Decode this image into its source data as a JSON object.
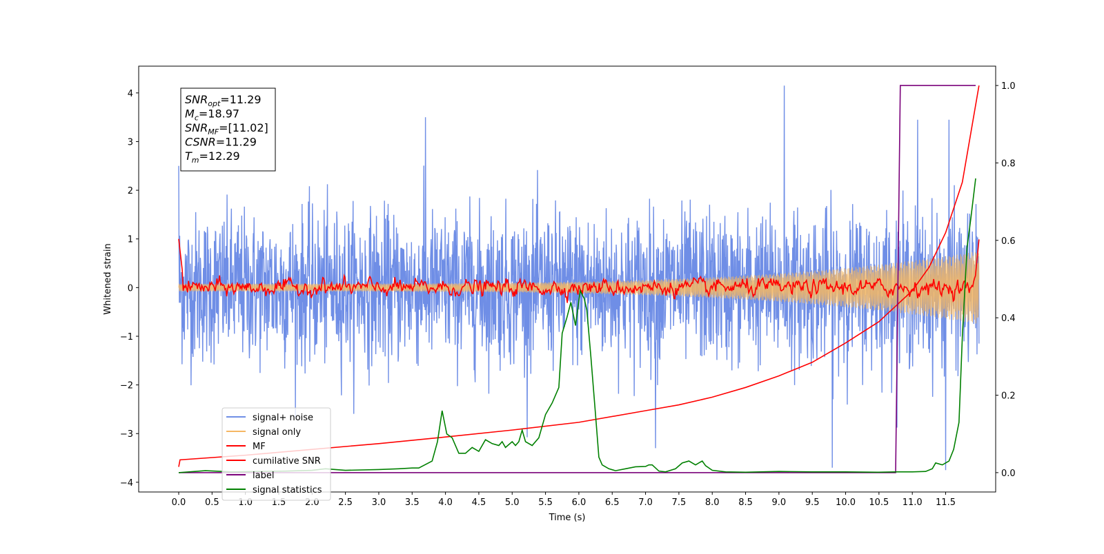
{
  "chart_data": {
    "type": "line",
    "xlabel": "Time (s)",
    "ylabel_left": "Whitened strain",
    "ylabel_right": "",
    "xlim": [
      -0.6,
      12.25
    ],
    "ylim_left": [
      -4.2,
      4.55
    ],
    "ylim_right": [
      -0.05,
      1.05
    ],
    "x_ticks": [
      "0.0",
      "0.5",
      "1.0",
      "1.5",
      "2.0",
      "2.5",
      "3.0",
      "3.5",
      "4.0",
      "4.5",
      "5.0",
      "5.5",
      "6.0",
      "6.5",
      "7.0",
      "7.5",
      "8.0",
      "8.5",
      "9.0",
      "9.5",
      "10.0",
      "10.5",
      "11.0",
      "11.5"
    ],
    "y_ticks_left": [
      "4",
      "3",
      "2",
      "1",
      "0",
      "−1",
      "−2",
      "−3",
      "−4"
    ],
    "y_ticks_right": [
      "1.0",
      "0.8",
      "0.6",
      "0.4",
      "0.2",
      "0.0"
    ],
    "legend_position": "lower-left",
    "stats_box": {
      "position": "upper-left",
      "lines": [
        {
          "base": "SNR",
          "sub": "opt",
          "value": "=11.29"
        },
        {
          "base": "M",
          "sub": "c",
          "value": "=18.97"
        },
        {
          "base": "SNR",
          "sub": "MF",
          "value": "=[11.02]"
        },
        {
          "base": "CSNR",
          "sub": "",
          "value": "=11.29"
        },
        {
          "base": "T",
          "sub": "m",
          "value": "=12.29"
        }
      ]
    },
    "series": [
      {
        "name": "signal+ noise",
        "color": "#6f8ee6",
        "axis": "left",
        "kind": "noise",
        "x_range": [
          0,
          12.0
        ],
        "noise_sigma": 0.9,
        "peaks": [
          [
            9.08,
            4.15
          ],
          [
            11.08,
            3.45
          ],
          [
            11.55,
            3.45
          ],
          [
            0.0,
            2.5
          ],
          [
            3.7,
            3.5
          ],
          [
            9.8,
            -3.7
          ],
          [
            11.5,
            -3.75
          ],
          [
            7.15,
            -3.3
          ]
        ]
      },
      {
        "name": "signal only",
        "color": "#f5b763",
        "axis": "left",
        "kind": "chirp",
        "x_range": [
          0,
          12.0
        ],
        "amplitude_start": 0.08,
        "amplitude_end": 0.75
      },
      {
        "name": "MF",
        "color": "#ff0000",
        "axis": "left",
        "kind": "mf",
        "x_range": [
          0,
          12.0
        ],
        "start_value": 1.0,
        "end_value": 1.0,
        "noise_sigma": 0.07
      },
      {
        "name": "cumilative SNR",
        "color": "#ff0000",
        "axis": "right",
        "x": [
          0.0,
          0.02,
          1.0,
          2.0,
          3.0,
          4.0,
          5.0,
          6.0,
          7.0,
          7.5,
          8.0,
          8.5,
          9.0,
          9.5,
          10.0,
          10.5,
          11.0,
          11.25,
          11.5,
          11.75,
          12.0
        ],
        "y": [
          0.015,
          0.033,
          0.045,
          0.06,
          0.075,
          0.092,
          0.11,
          0.13,
          0.16,
          0.175,
          0.195,
          0.22,
          0.25,
          0.285,
          0.335,
          0.39,
          0.47,
          0.53,
          0.62,
          0.75,
          1.0
        ]
      },
      {
        "name": "label",
        "color": "#7a007a",
        "axis": "right",
        "x": [
          0.0,
          10.75,
          10.82,
          11.95
        ],
        "y": [
          0.0,
          0.0,
          1.0,
          1.0
        ]
      },
      {
        "name": "signal statistics",
        "color": "#008000",
        "axis": "right",
        "x": [
          0.0,
          0.4,
          0.8,
          1.2,
          1.6,
          2.0,
          2.2,
          2.5,
          3.0,
          3.3,
          3.5,
          3.6,
          3.8,
          3.88,
          3.95,
          4.02,
          4.1,
          4.2,
          4.3,
          4.4,
          4.5,
          4.6,
          4.7,
          4.8,
          4.85,
          4.9,
          5.0,
          5.05,
          5.1,
          5.15,
          5.2,
          5.3,
          5.4,
          5.5,
          5.6,
          5.7,
          5.75,
          5.82,
          5.88,
          5.95,
          6.02,
          6.08,
          6.12,
          6.18,
          6.25,
          6.3,
          6.35,
          6.45,
          6.55,
          6.7,
          6.85,
          7.0,
          7.05,
          7.1,
          7.2,
          7.3,
          7.45,
          7.55,
          7.65,
          7.75,
          7.8,
          7.85,
          7.9,
          8.0,
          8.2,
          8.5,
          9.0,
          9.5,
          10.0,
          10.5,
          10.75,
          11.0,
          11.2,
          11.3,
          11.35,
          11.45,
          11.55,
          11.62,
          11.7,
          11.75,
          11.82,
          11.88,
          11.95
        ],
        "y": [
          0.0,
          0.005,
          0.002,
          0.003,
          0.004,
          0.006,
          0.01,
          0.006,
          0.008,
          0.01,
          0.012,
          0.012,
          0.03,
          0.08,
          0.16,
          0.1,
          0.09,
          0.05,
          0.05,
          0.065,
          0.055,
          0.085,
          0.075,
          0.07,
          0.08,
          0.065,
          0.08,
          0.07,
          0.08,
          0.11,
          0.08,
          0.07,
          0.09,
          0.15,
          0.18,
          0.22,
          0.36,
          0.4,
          0.44,
          0.38,
          0.47,
          0.45,
          0.42,
          0.3,
          0.15,
          0.04,
          0.02,
          0.01,
          0.005,
          0.01,
          0.015,
          0.016,
          0.02,
          0.02,
          0.004,
          0.002,
          0.01,
          0.025,
          0.03,
          0.02,
          0.025,
          0.03,
          0.018,
          0.006,
          0.002,
          0.001,
          0.003,
          0.002,
          0.002,
          0.001,
          0.002,
          0.002,
          0.003,
          0.01,
          0.025,
          0.02,
          0.03,
          0.06,
          0.13,
          0.35,
          0.58,
          0.66,
          0.76
        ]
      }
    ]
  }
}
